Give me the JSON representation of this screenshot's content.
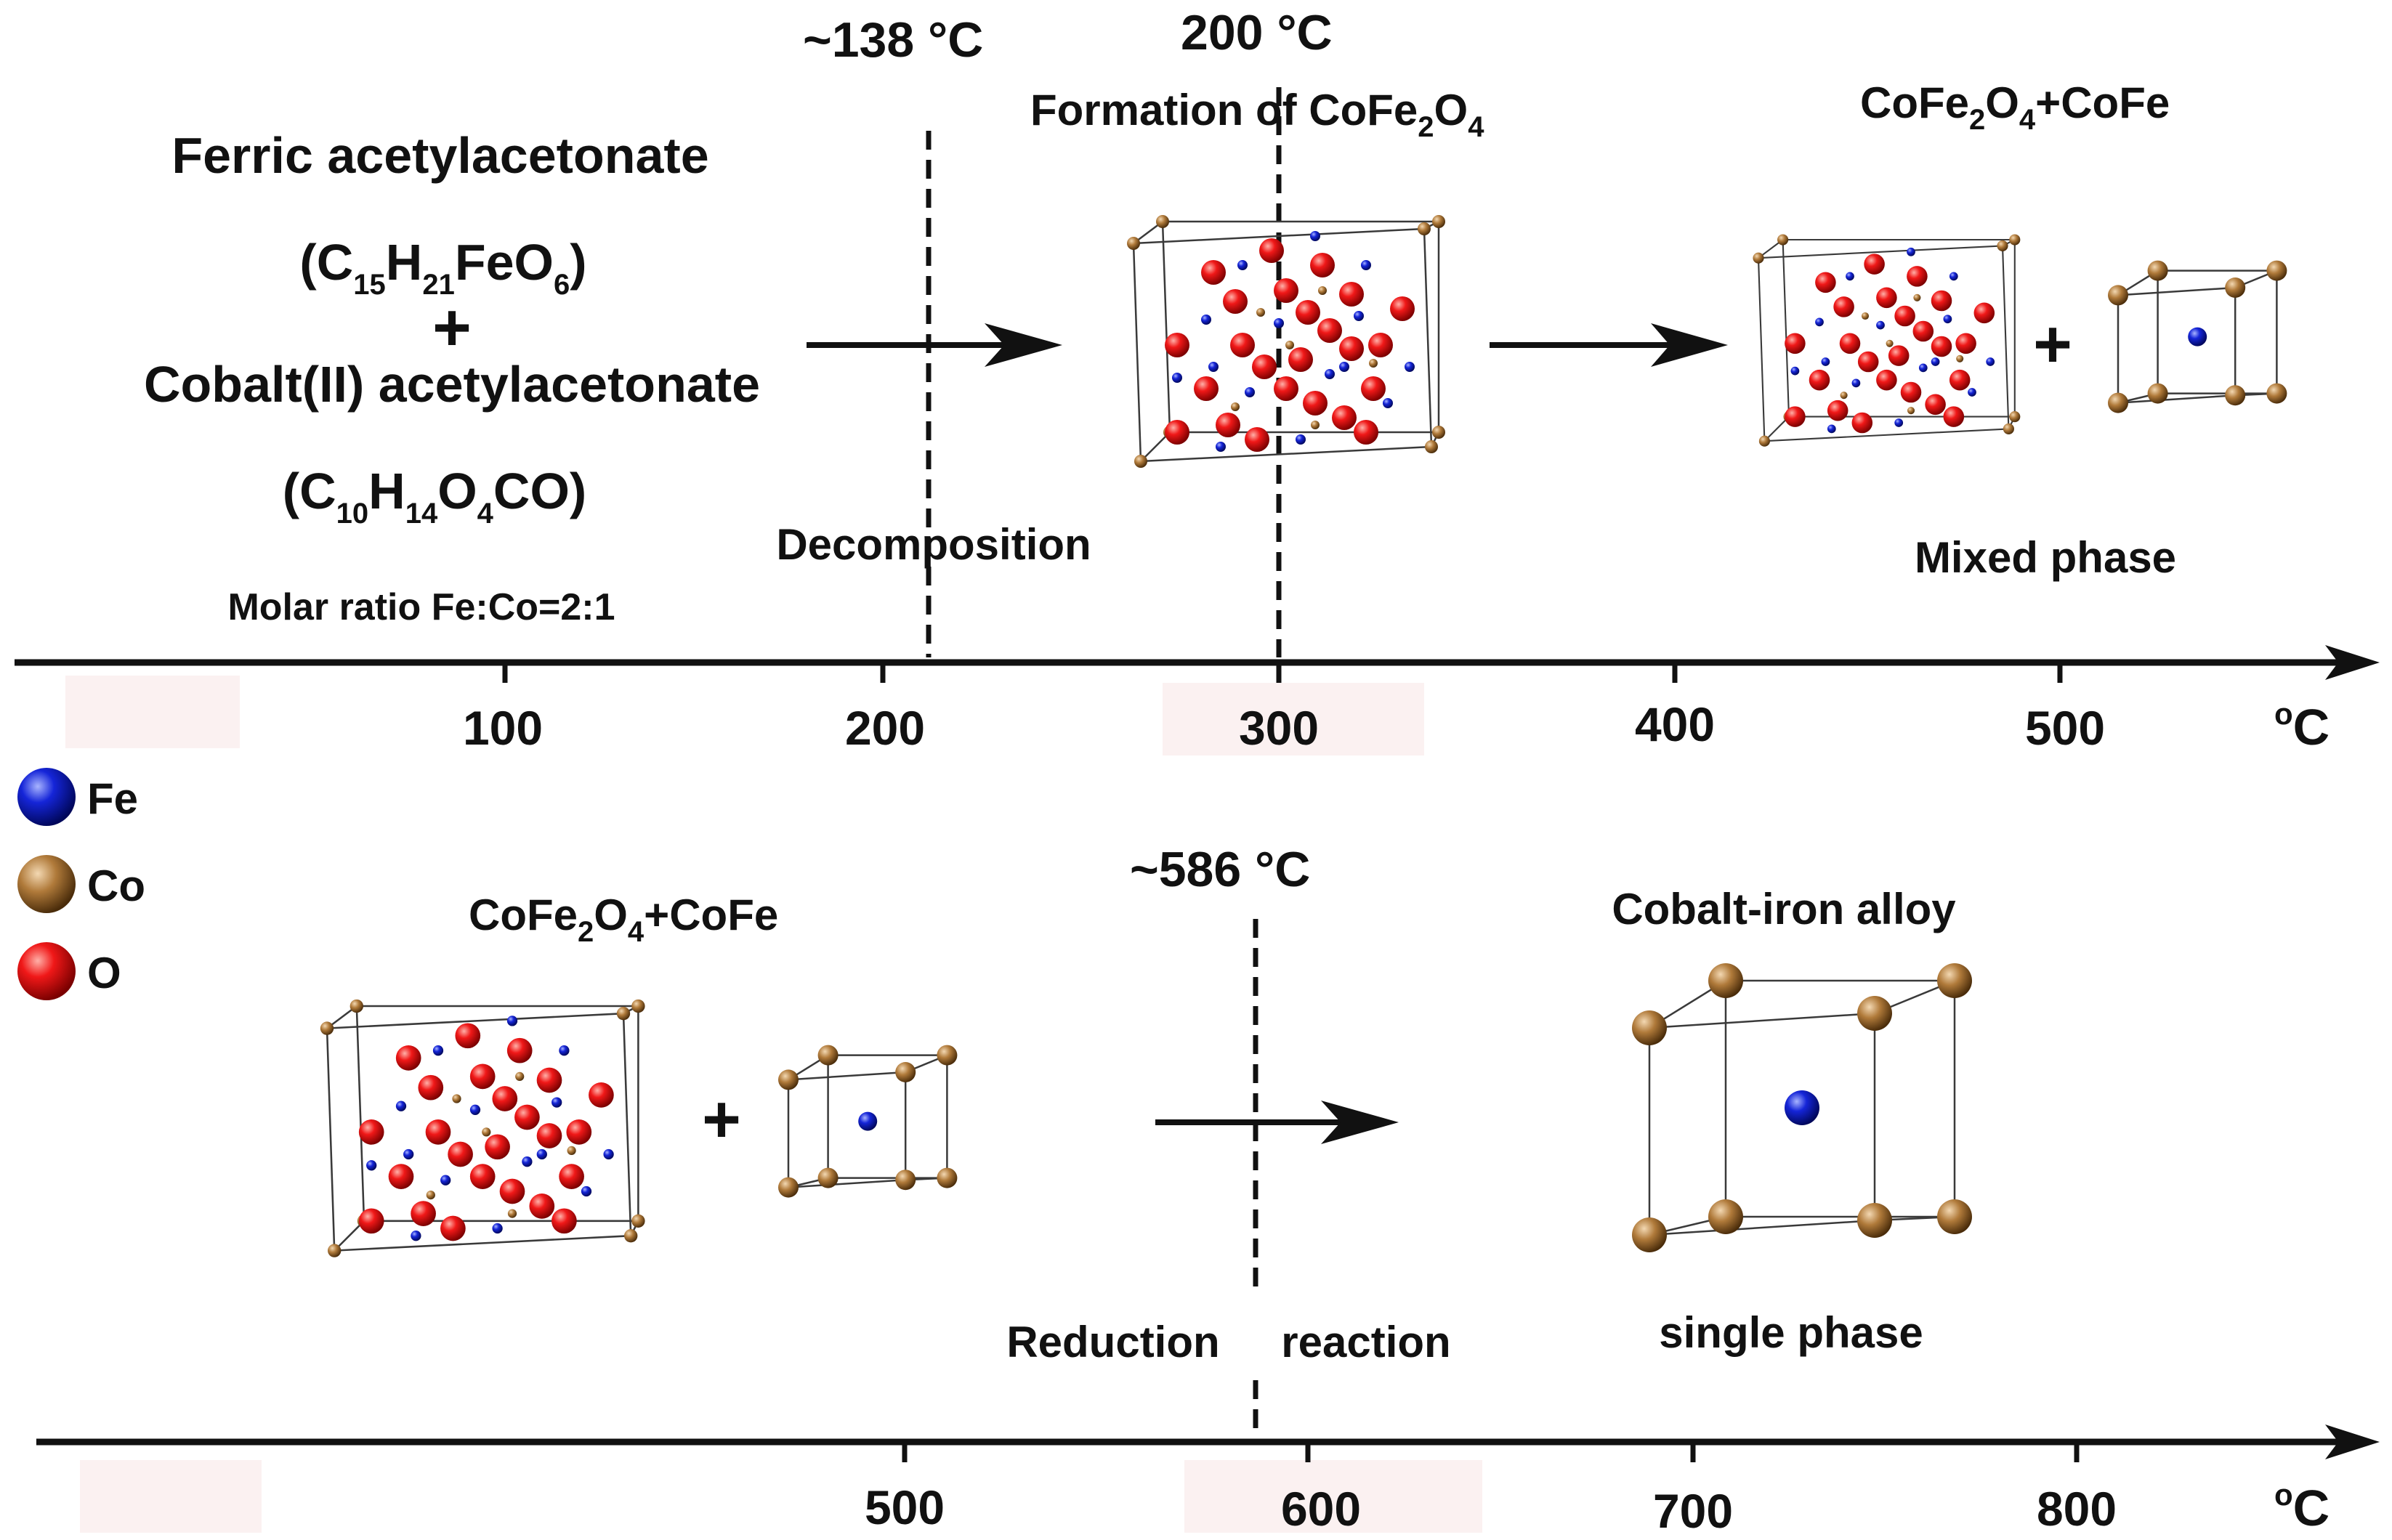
{
  "top": {
    "temp_decomposition": "~138 °C",
    "temp_formation": "200 °C",
    "formation_label_main": "Formation of CoFe",
    "formation_sub_2": "2",
    "formation_O": "O",
    "formation_sub_4": "4",
    "precursor_1": "Ferric acetylacetonate",
    "formula_1": {
      "p1": "(C",
      "s1": "15",
      "p2": "H",
      "s2": "21",
      "p3": "FeO",
      "s3": "6",
      "p4": ")"
    },
    "plus": "+",
    "precursor_2": "Cobalt(II) acetylacetonate",
    "formula_2": {
      "p1": "(C",
      "s1": "10",
      "p2": "H",
      "s2": "14",
      "p3": "O",
      "s3": "4",
      "p4": "CO)"
    },
    "molar_ratio": "Molar ratio Fe:Co=2:1",
    "decomposition": "Decomposition",
    "mixed_head": {
      "p1": "CoFe",
      "s1": "2",
      "p2": "O",
      "s2": "4",
      "p3": "+CoFe"
    },
    "mixed_phase": "Mixed phase",
    "axis": {
      "ticks": [
        "100",
        "200",
        "300",
        "400",
        "500"
      ],
      "unit_sup": "o",
      "unit": "C"
    }
  },
  "legend": [
    {
      "label": "Fe",
      "color": "#1020c8"
    },
    {
      "label": "Co",
      "color": "#b07a3a"
    },
    {
      "label": "O",
      "color": "#e01010"
    }
  ],
  "bottom": {
    "mixed_head": {
      "p1": "CoFe",
      "s1": "2",
      "p2": "O",
      "s2": "4",
      "p3": "+CoFe"
    },
    "temp_reduction": "~586 °C",
    "alloy_title": "Cobalt-iron alloy",
    "reduction_left": "Reduction",
    "reduction_right": "reaction",
    "single_phase": "single phase",
    "plus": "+",
    "axis": {
      "ticks": [
        "500",
        "600",
        "700",
        "800"
      ],
      "unit_sup": "o",
      "unit": "C"
    }
  },
  "colors": {
    "fe": "#1020c8",
    "co": "#b07a3a",
    "o": "#e01010",
    "line": "#111111"
  }
}
